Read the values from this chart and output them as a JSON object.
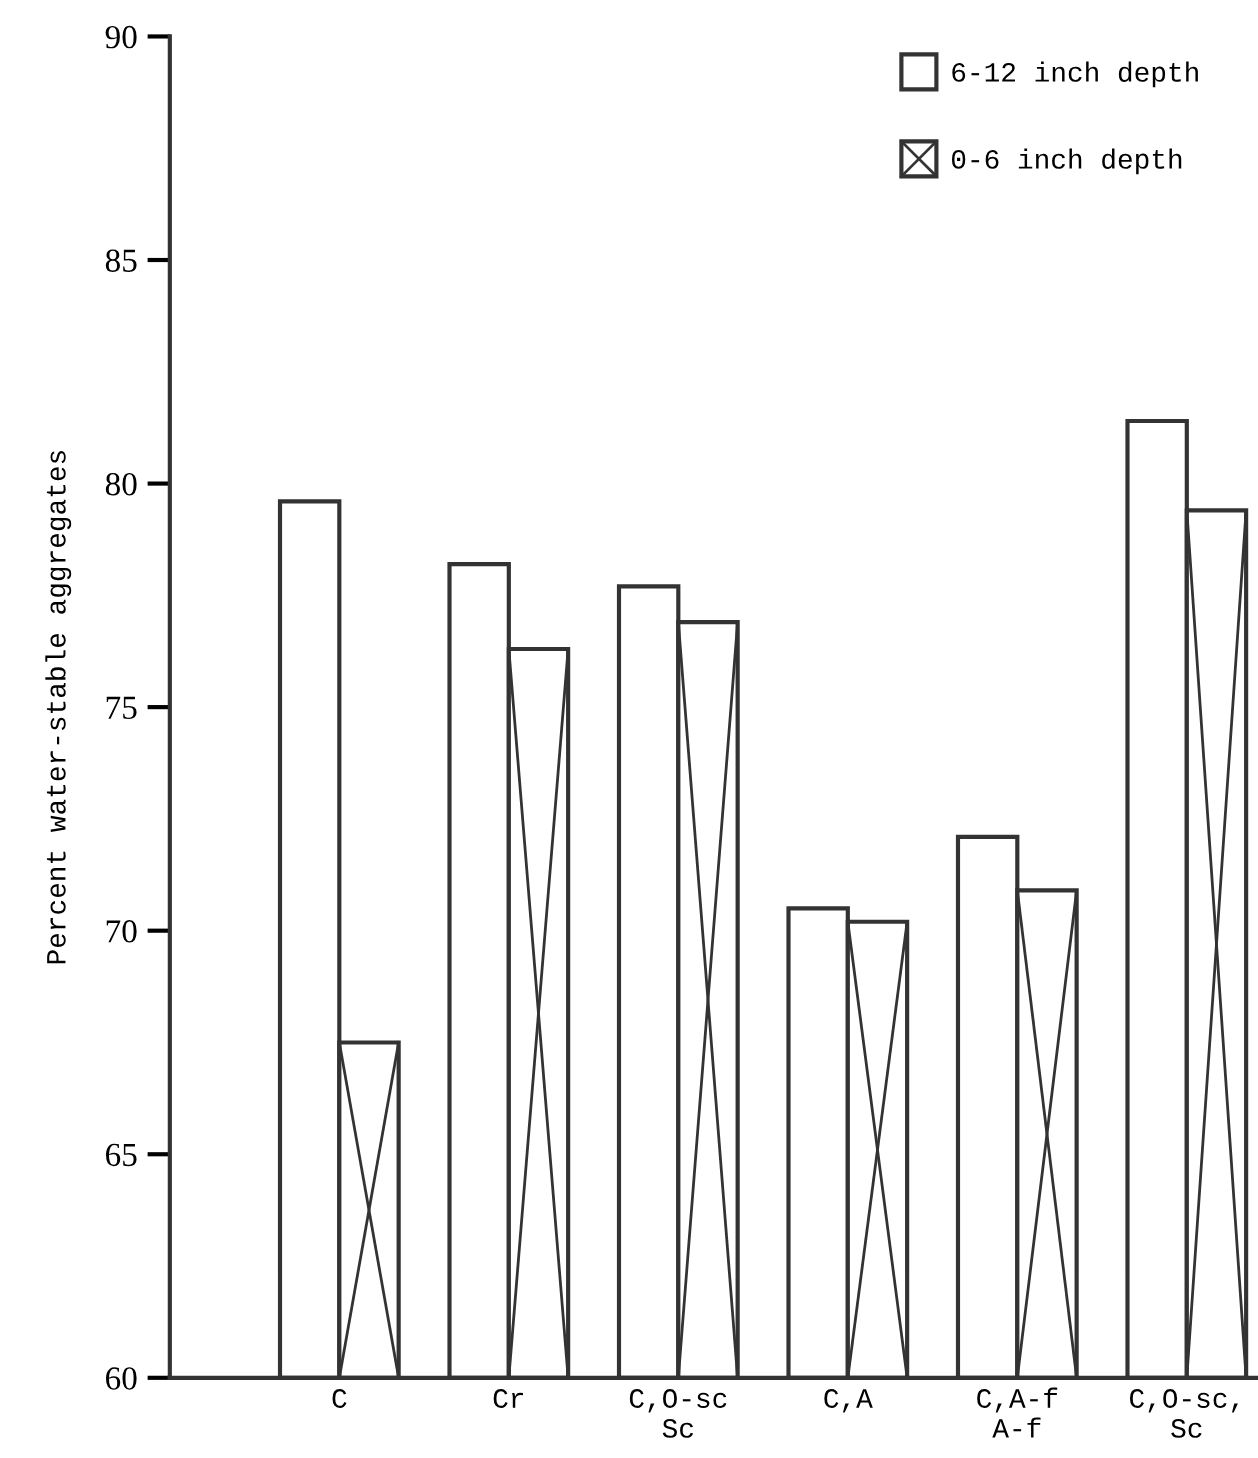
{
  "chart_data": {
    "type": "bar",
    "ylabel": "Percent water-stable aggregates",
    "categories": [
      "C",
      "Cr",
      "C,O-sc\nSc",
      "C,A",
      "C,A-f\nA-f",
      "C,O-sc,\nSc"
    ],
    "series": [
      {
        "name": "6-12 inch depth",
        "color": "#ffffff",
        "values": [
          79.6,
          78.2,
          77.7,
          70.5,
          72.1,
          81.4
        ]
      },
      {
        "name": "0-6 inch depth",
        "color": "#ffffff",
        "values": [
          67.5,
          76.3,
          76.9,
          70.2,
          70.9,
          79.4
        ]
      }
    ],
    "ylim": [
      60,
      90
    ],
    "yticks": [
      60,
      65,
      70,
      75,
      80,
      85,
      90
    ],
    "grid": false,
    "legend": "top right"
  }
}
